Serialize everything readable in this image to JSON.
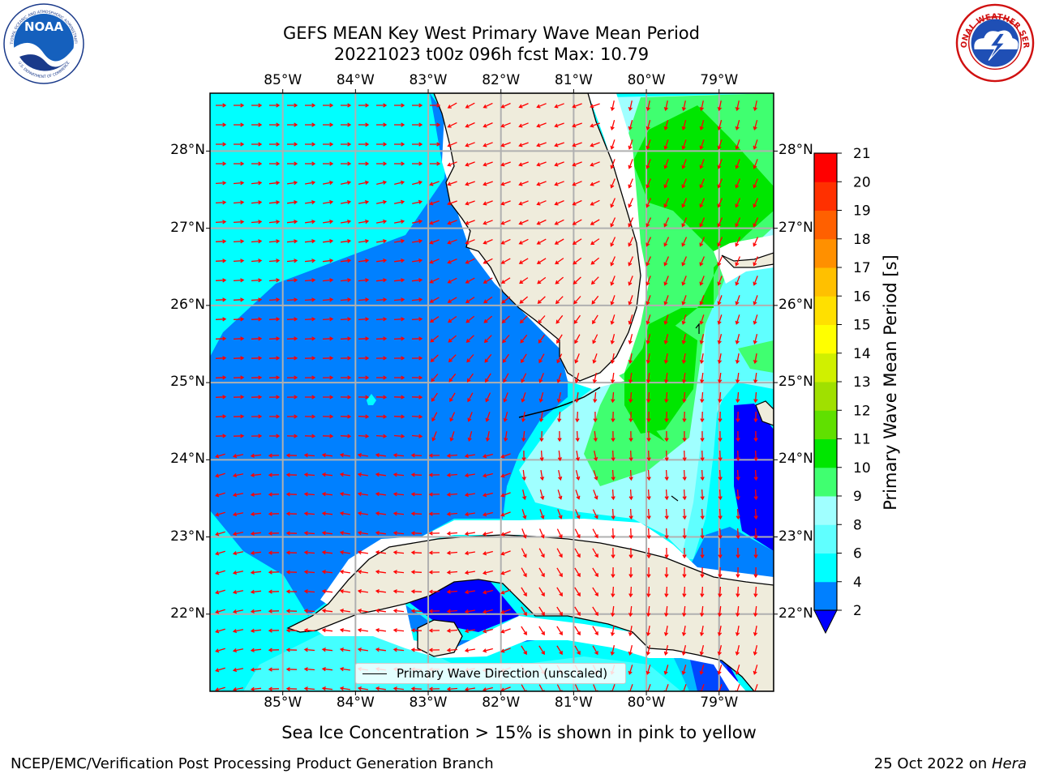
{
  "title": {
    "line1": "GEFS MEAN Key West Primary Wave Mean Period",
    "line2": "20221023 t00z 096h fcst   Max: 10.79"
  },
  "map": {
    "lon_labels": [
      "85°W",
      "84°W",
      "83°W",
      "82°W",
      "81°W",
      "80°W",
      "79°W"
    ],
    "lon_values": [
      -85,
      -84,
      -83,
      -82,
      -81,
      -80,
      -79
    ],
    "lat_labels": [
      "28°N",
      "27°N",
      "26°N",
      "25°N",
      "24°N",
      "23°N",
      "22°N"
    ],
    "lat_values": [
      28,
      27,
      26,
      25,
      24,
      23,
      22
    ],
    "lon_range": [
      -86.0,
      -78.25
    ],
    "lat_range": [
      21.0,
      28.75
    ],
    "grid": true,
    "land_color": "#efecdc",
    "arrow_color": "#ff0000"
  },
  "colorbar": {
    "title": "Primary Wave Mean Period [s]",
    "ticks": [
      "2",
      "4",
      "6",
      "8",
      "9",
      "10",
      "11",
      "12",
      "13",
      "14",
      "15",
      "16",
      "17",
      "18",
      "19",
      "20",
      "21"
    ],
    "colors": [
      "#0000ff",
      "#0080ff",
      "#00ffff",
      "#60ffff",
      "#a0ffff",
      "#40ff70",
      "#00e600",
      "#60e000",
      "#a0e000",
      "#d0f000",
      "#ffff00",
      "#ffe000",
      "#ffc000",
      "#ff9000",
      "#ff6000",
      "#ff3000",
      "#ff0000"
    ],
    "extend_color": "#0000ff"
  },
  "legend": {
    "label": "Primary Wave Direction (unscaled)"
  },
  "note": "Sea Ice Concentration > 15% is shown in pink to yellow",
  "footer": {
    "left": "NCEP/EMC/Verification Post Processing Product Generation Branch",
    "right_prefix": "25 Oct 2022 on ",
    "right_host": "Hera"
  },
  "logos": {
    "noaa_text": "NOAA",
    "noaa_ring": "NATIONAL OCEANIC AND ATMOSPHERIC ADMINISTRATION",
    "noaa_ring_bottom": "U.S. DEPARTMENT OF COMMERCE",
    "nws_ring": "NATIONAL WEATHER SERVICE"
  }
}
